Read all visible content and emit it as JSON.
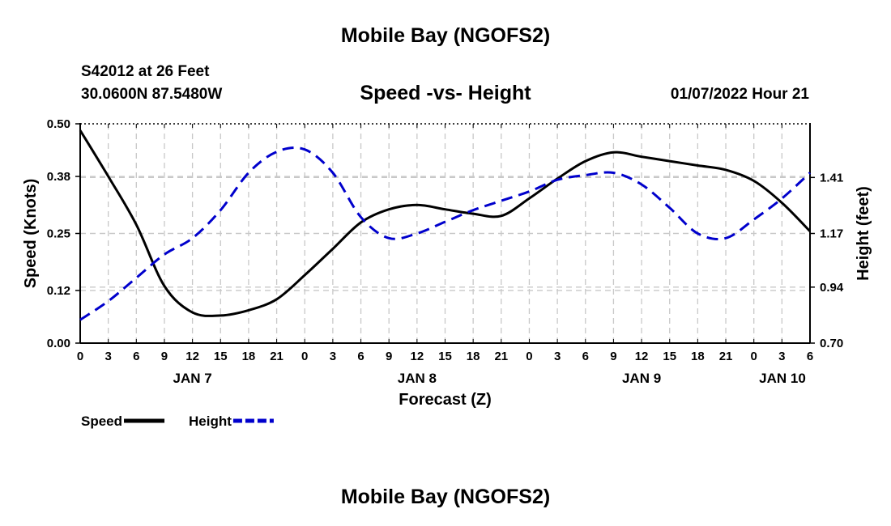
{
  "header": {
    "title": "Mobile Bay (NGOFS2)",
    "station": "S42012 at 26 Feet",
    "coordinates": "30.0600N  87.5480W",
    "subtitle": "Speed -vs- Height",
    "datetime": "01/07/2022 Hour 21"
  },
  "footer": {
    "title": "Mobile Bay (NGOFS2)"
  },
  "chart_data": {
    "type": "line",
    "xlabel": "Forecast (Z)",
    "x_tick_labels": [
      "0",
      "3",
      "6",
      "9",
      "12",
      "15",
      "18",
      "21",
      "0",
      "3",
      "6",
      "9",
      "12",
      "15",
      "18",
      "21",
      "0",
      "3",
      "6",
      "9",
      "12",
      "15",
      "18",
      "21",
      "0",
      "3",
      "6"
    ],
    "date_labels": [
      {
        "label": "JAN 7",
        "hour": 12
      },
      {
        "label": "JAN 8",
        "hour": 36
      },
      {
        "label": "JAN 9",
        "hour": 60
      },
      {
        "label": "JAN 10",
        "hour": 81
      }
    ],
    "xlim": [
      0,
      78
    ],
    "y_left": {
      "label": "Speed (Knots)",
      "ticks": [
        "0.00",
        "0.12",
        "0.25",
        "0.38",
        "0.50"
      ],
      "lim": [
        0,
        0.5
      ]
    },
    "y_right": {
      "label": "Height (feet)",
      "ticks": [
        "0.70",
        "0.94",
        "1.17",
        "1.41"
      ],
      "lim": [
        0.7,
        1.64
      ]
    },
    "grid": true,
    "legend_position": "bottom-left",
    "series": [
      {
        "name": "Speed",
        "axis": "left",
        "color": "#000000",
        "dash": "solid",
        "x": [
          0,
          3,
          6,
          9,
          12,
          15,
          18,
          21,
          24,
          27,
          30,
          33,
          36,
          39,
          42,
          45,
          48,
          51,
          54,
          57,
          60,
          63,
          66,
          69,
          72,
          75,
          78
        ],
        "y": [
          0.485,
          0.38,
          0.27,
          0.13,
          0.07,
          0.063,
          0.075,
          0.1,
          0.155,
          0.215,
          0.275,
          0.305,
          0.315,
          0.305,
          0.295,
          0.29,
          0.33,
          0.375,
          0.415,
          0.435,
          0.425,
          0.415,
          0.405,
          0.395,
          0.37,
          0.32,
          0.255
        ]
      },
      {
        "name": "Height",
        "axis": "right",
        "color": "#0000cc",
        "dash": "dashed",
        "x": [
          0,
          3,
          6,
          9,
          12,
          15,
          18,
          21,
          24,
          27,
          30,
          33,
          36,
          39,
          42,
          45,
          48,
          51,
          54,
          57,
          60,
          63,
          66,
          69,
          72,
          75,
          78
        ],
        "y": [
          0.8,
          0.88,
          0.98,
          1.08,
          1.15,
          1.27,
          1.43,
          1.52,
          1.53,
          1.43,
          1.24,
          1.15,
          1.17,
          1.22,
          1.27,
          1.31,
          1.35,
          1.4,
          1.42,
          1.43,
          1.38,
          1.28,
          1.17,
          1.15,
          1.23,
          1.32,
          1.43
        ]
      }
    ]
  }
}
